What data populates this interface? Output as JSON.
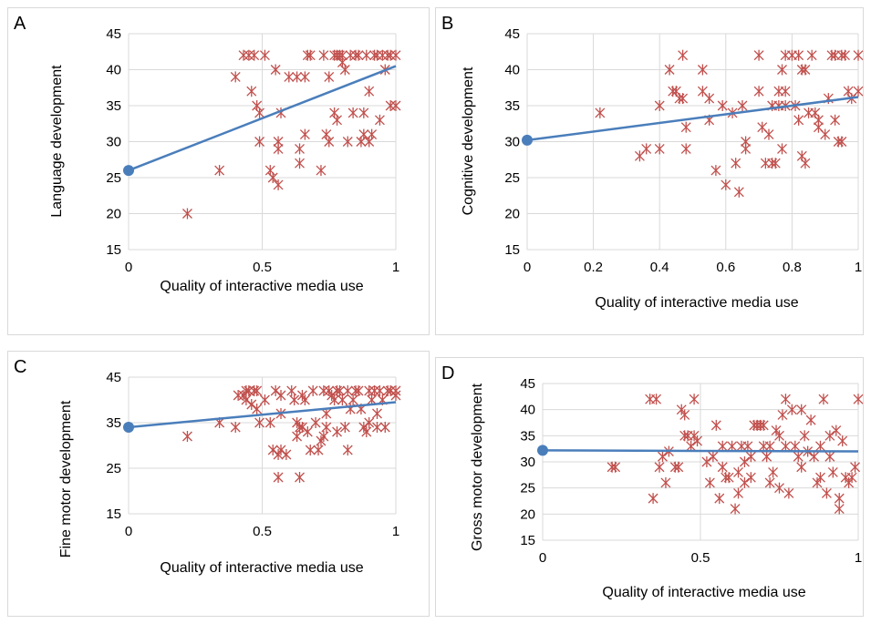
{
  "colors": {
    "point": "#c0504d",
    "fit": "#4a7ebb",
    "grid": "#d9d9d9"
  },
  "chart_data": [
    {
      "panel": "A",
      "type": "scatter",
      "xlabel": "Quality of interactive media use",
      "ylabel": "Language development",
      "xlim": [
        0,
        1
      ],
      "ylim": [
        15,
        45
      ],
      "xticks": [
        "0",
        "0.5",
        "1"
      ],
      "xtick_values": [
        0,
        0.5,
        1
      ],
      "yticks": [
        "15",
        "20",
        "25",
        "30",
        "35",
        "40",
        "45"
      ],
      "ytick_values": [
        15,
        20,
        25,
        30,
        35,
        40,
        45
      ],
      "fit": {
        "x": [
          0,
          1
        ],
        "y": [
          26,
          40.5
        ]
      },
      "points": [
        [
          0.22,
          20
        ],
        [
          0.34,
          26
        ],
        [
          0.4,
          39
        ],
        [
          0.43,
          42
        ],
        [
          0.45,
          42
        ],
        [
          0.46,
          37
        ],
        [
          0.47,
          42
        ],
        [
          0.48,
          35
        ],
        [
          0.49,
          34
        ],
        [
          0.49,
          30
        ],
        [
          0.51,
          42
        ],
        [
          0.53,
          26
        ],
        [
          0.54,
          25
        ],
        [
          0.55,
          40
        ],
        [
          0.56,
          24
        ],
        [
          0.56,
          29
        ],
        [
          0.56,
          30
        ],
        [
          0.57,
          34
        ],
        [
          0.6,
          39
        ],
        [
          0.63,
          39
        ],
        [
          0.64,
          29
        ],
        [
          0.64,
          27
        ],
        [
          0.66,
          31
        ],
        [
          0.66,
          39
        ],
        [
          0.67,
          42
        ],
        [
          0.68,
          42
        ],
        [
          0.72,
          26
        ],
        [
          0.73,
          42
        ],
        [
          0.74,
          31
        ],
        [
          0.75,
          39
        ],
        [
          0.75,
          30
        ],
        [
          0.77,
          42
        ],
        [
          0.77,
          34
        ],
        [
          0.78,
          42
        ],
        [
          0.78,
          33
        ],
        [
          0.79,
          42
        ],
        [
          0.8,
          42
        ],
        [
          0.8,
          41
        ],
        [
          0.81,
          40
        ],
        [
          0.82,
          30
        ],
        [
          0.83,
          42
        ],
        [
          0.84,
          34
        ],
        [
          0.85,
          42
        ],
        [
          0.86,
          42
        ],
        [
          0.87,
          30
        ],
        [
          0.88,
          34
        ],
        [
          0.88,
          31
        ],
        [
          0.89,
          42
        ],
        [
          0.9,
          37
        ],
        [
          0.9,
          30
        ],
        [
          0.91,
          31
        ],
        [
          0.92,
          42
        ],
        [
          0.93,
          42
        ],
        [
          0.94,
          33
        ],
        [
          0.95,
          42
        ],
        [
          0.96,
          40
        ],
        [
          0.97,
          42
        ],
        [
          0.98,
          35
        ],
        [
          0.98,
          42
        ],
        [
          1.0,
          35
        ],
        [
          1.0,
          42
        ]
      ]
    },
    {
      "panel": "B",
      "type": "scatter",
      "xlabel": "Quality of interactive media use",
      "ylabel": "Cognitive development",
      "xlim": [
        0,
        1
      ],
      "ylim": [
        15,
        45
      ],
      "xticks": [
        "0",
        "0.2",
        "0.4",
        "0.6",
        "0.8",
        "1"
      ],
      "xtick_values": [
        0,
        0.2,
        0.4,
        0.6,
        0.8,
        1
      ],
      "yticks": [
        "15",
        "20",
        "25",
        "30",
        "35",
        "40",
        "45"
      ],
      "ytick_values": [
        15,
        20,
        25,
        30,
        35,
        40,
        45
      ],
      "fit": {
        "x": [
          0,
          1
        ],
        "y": [
          30.2,
          36.2
        ]
      },
      "points": [
        [
          0.22,
          34
        ],
        [
          0.34,
          28
        ],
        [
          0.36,
          29
        ],
        [
          0.4,
          35
        ],
        [
          0.4,
          29
        ],
        [
          0.43,
          40
        ],
        [
          0.44,
          37
        ],
        [
          0.45,
          37
        ],
        [
          0.46,
          36
        ],
        [
          0.47,
          42
        ],
        [
          0.47,
          36
        ],
        [
          0.48,
          32
        ],
        [
          0.48,
          29
        ],
        [
          0.53,
          40
        ],
        [
          0.53,
          37
        ],
        [
          0.55,
          36
        ],
        [
          0.55,
          33
        ],
        [
          0.57,
          26
        ],
        [
          0.59,
          35
        ],
        [
          0.6,
          24
        ],
        [
          0.62,
          34
        ],
        [
          0.63,
          27
        ],
        [
          0.64,
          23
        ],
        [
          0.65,
          35
        ],
        [
          0.66,
          30
        ],
        [
          0.66,
          29
        ],
        [
          0.7,
          42
        ],
        [
          0.7,
          37
        ],
        [
          0.71,
          32
        ],
        [
          0.72,
          27
        ],
        [
          0.73,
          31
        ],
        [
          0.74,
          35
        ],
        [
          0.74,
          27
        ],
        [
          0.75,
          27
        ],
        [
          0.76,
          37
        ],
        [
          0.76,
          35
        ],
        [
          0.77,
          40
        ],
        [
          0.77,
          29
        ],
        [
          0.78,
          42
        ],
        [
          0.78,
          37
        ],
        [
          0.78,
          35
        ],
        [
          0.8,
          42
        ],
        [
          0.81,
          35
        ],
        [
          0.82,
          33
        ],
        [
          0.82,
          42
        ],
        [
          0.83,
          40
        ],
        [
          0.83,
          28
        ],
        [
          0.84,
          40
        ],
        [
          0.84,
          27
        ],
        [
          0.85,
          34
        ],
        [
          0.86,
          42
        ],
        [
          0.87,
          34
        ],
        [
          0.88,
          33
        ],
        [
          0.88,
          32
        ],
        [
          0.9,
          31
        ],
        [
          0.91,
          36
        ],
        [
          0.92,
          42
        ],
        [
          0.93,
          42
        ],
        [
          0.93,
          33
        ],
        [
          0.94,
          30
        ],
        [
          0.95,
          42
        ],
        [
          0.95,
          30
        ],
        [
          0.96,
          42
        ],
        [
          0.97,
          37
        ],
        [
          0.98,
          36
        ],
        [
          1.0,
          42
        ],
        [
          1.0,
          37
        ]
      ]
    },
    {
      "panel": "C",
      "type": "scatter",
      "xlabel": "Quality of interactive media use",
      "ylabel": "Fine motor development",
      "xlim": [
        0,
        1
      ],
      "ylim": [
        15,
        45
      ],
      "xticks": [
        "0",
        "0.5",
        "1"
      ],
      "xtick_values": [
        0,
        0.5,
        1
      ],
      "yticks": [
        "15",
        "25",
        "35",
        "45"
      ],
      "ytick_values": [
        15,
        25,
        35,
        45
      ],
      "fit": {
        "x": [
          0,
          1
        ],
        "y": [
          34,
          39.5
        ]
      },
      "points": [
        [
          0.22,
          32
        ],
        [
          0.34,
          35
        ],
        [
          0.4,
          34
        ],
        [
          0.41,
          41
        ],
        [
          0.43,
          41
        ],
        [
          0.44,
          40
        ],
        [
          0.44,
          42
        ],
        [
          0.45,
          42
        ],
        [
          0.46,
          39
        ],
        [
          0.47,
          42
        ],
        [
          0.48,
          42
        ],
        [
          0.48,
          38
        ],
        [
          0.49,
          35
        ],
        [
          0.51,
          40
        ],
        [
          0.53,
          35
        ],
        [
          0.54,
          29
        ],
        [
          0.55,
          42
        ],
        [
          0.56,
          28
        ],
        [
          0.56,
          23
        ],
        [
          0.57,
          41
        ],
        [
          0.57,
          37
        ],
        [
          0.57,
          29
        ],
        [
          0.59,
          28
        ],
        [
          0.61,
          42
        ],
        [
          0.62,
          40
        ],
        [
          0.63,
          35
        ],
        [
          0.63,
          32
        ],
        [
          0.64,
          34
        ],
        [
          0.64,
          23
        ],
        [
          0.65,
          41
        ],
        [
          0.65,
          34
        ],
        [
          0.66,
          40
        ],
        [
          0.67,
          33
        ],
        [
          0.68,
          29
        ],
        [
          0.69,
          42
        ],
        [
          0.7,
          35
        ],
        [
          0.71,
          29
        ],
        [
          0.72,
          31
        ],
        [
          0.73,
          32
        ],
        [
          0.73,
          42
        ],
        [
          0.74,
          37
        ],
        [
          0.74,
          34
        ],
        [
          0.75,
          42
        ],
        [
          0.76,
          41
        ],
        [
          0.77,
          40
        ],
        [
          0.78,
          42
        ],
        [
          0.78,
          33
        ],
        [
          0.79,
          42
        ],
        [
          0.8,
          40
        ],
        [
          0.81,
          34
        ],
        [
          0.82,
          42
        ],
        [
          0.82,
          29
        ],
        [
          0.83,
          38
        ],
        [
          0.84,
          40
        ],
        [
          0.85,
          42
        ],
        [
          0.86,
          42
        ],
        [
          0.87,
          38
        ],
        [
          0.88,
          34
        ],
        [
          0.89,
          33
        ],
        [
          0.9,
          42
        ],
        [
          0.9,
          35
        ],
        [
          0.91,
          40
        ],
        [
          0.92,
          42
        ],
        [
          0.93,
          37
        ],
        [
          0.93,
          34
        ],
        [
          0.94,
          42
        ],
        [
          0.95,
          40
        ],
        [
          0.96,
          34
        ],
        [
          0.97,
          42
        ],
        [
          0.98,
          42
        ],
        [
          1.0,
          42
        ],
        [
          1.0,
          41
        ]
      ]
    },
    {
      "panel": "D",
      "type": "scatter",
      "xlabel": "Quality of interactive media use",
      "ylabel": "Gross motor development",
      "xlim": [
        0,
        1
      ],
      "ylim": [
        15,
        45
      ],
      "xticks": [
        "0",
        "0.5",
        "1"
      ],
      "xtick_values": [
        0,
        0.5,
        1
      ],
      "yticks": [
        "15",
        "20",
        "25",
        "30",
        "35",
        "40",
        "45"
      ],
      "ytick_values": [
        15,
        20,
        25,
        30,
        35,
        40,
        45
      ],
      "fit": {
        "x": [
          0,
          1
        ],
        "y": [
          32.2,
          32
        ]
      },
      "points": [
        [
          0.22,
          29
        ],
        [
          0.23,
          29
        ],
        [
          0.34,
          42
        ],
        [
          0.35,
          23
        ],
        [
          0.36,
          42
        ],
        [
          0.37,
          29
        ],
        [
          0.38,
          31
        ],
        [
          0.39,
          26
        ],
        [
          0.4,
          32
        ],
        [
          0.42,
          29
        ],
        [
          0.43,
          29
        ],
        [
          0.44,
          40
        ],
        [
          0.45,
          39
        ],
        [
          0.45,
          35
        ],
        [
          0.46,
          35
        ],
        [
          0.47,
          33
        ],
        [
          0.48,
          42
        ],
        [
          0.48,
          35
        ],
        [
          0.49,
          34
        ],
        [
          0.52,
          30
        ],
        [
          0.53,
          26
        ],
        [
          0.54,
          31
        ],
        [
          0.55,
          37
        ],
        [
          0.56,
          23
        ],
        [
          0.57,
          29
        ],
        [
          0.57,
          33
        ],
        [
          0.58,
          27
        ],
        [
          0.59,
          27
        ],
        [
          0.6,
          33
        ],
        [
          0.61,
          21
        ],
        [
          0.62,
          28
        ],
        [
          0.62,
          24
        ],
        [
          0.63,
          33
        ],
        [
          0.64,
          30
        ],
        [
          0.64,
          26
        ],
        [
          0.65,
          33
        ],
        [
          0.66,
          31
        ],
        [
          0.66,
          27
        ],
        [
          0.67,
          37
        ],
        [
          0.68,
          37
        ],
        [
          0.69,
          37
        ],
        [
          0.7,
          37
        ],
        [
          0.7,
          33
        ],
        [
          0.71,
          31
        ],
        [
          0.72,
          33
        ],
        [
          0.72,
          26
        ],
        [
          0.73,
          28
        ],
        [
          0.74,
          36
        ],
        [
          0.75,
          35
        ],
        [
          0.75,
          25
        ],
        [
          0.76,
          39
        ],
        [
          0.77,
          42
        ],
        [
          0.77,
          33
        ],
        [
          0.78,
          24
        ],
        [
          0.79,
          40
        ],
        [
          0.8,
          33
        ],
        [
          0.81,
          31
        ],
        [
          0.82,
          29
        ],
        [
          0.82,
          40
        ],
        [
          0.83,
          35
        ],
        [
          0.84,
          32
        ],
        [
          0.85,
          38
        ],
        [
          0.86,
          31
        ],
        [
          0.87,
          26
        ],
        [
          0.88,
          33
        ],
        [
          0.88,
          27
        ],
        [
          0.89,
          42
        ],
        [
          0.9,
          24
        ],
        [
          0.91,
          35
        ],
        [
          0.91,
          31
        ],
        [
          0.92,
          28
        ],
        [
          0.93,
          36
        ],
        [
          0.94,
          23
        ],
        [
          0.94,
          21
        ],
        [
          0.95,
          34
        ],
        [
          0.96,
          27
        ],
        [
          0.97,
          26
        ],
        [
          0.98,
          27
        ],
        [
          0.99,
          29
        ],
        [
          1.0,
          42
        ]
      ]
    }
  ]
}
